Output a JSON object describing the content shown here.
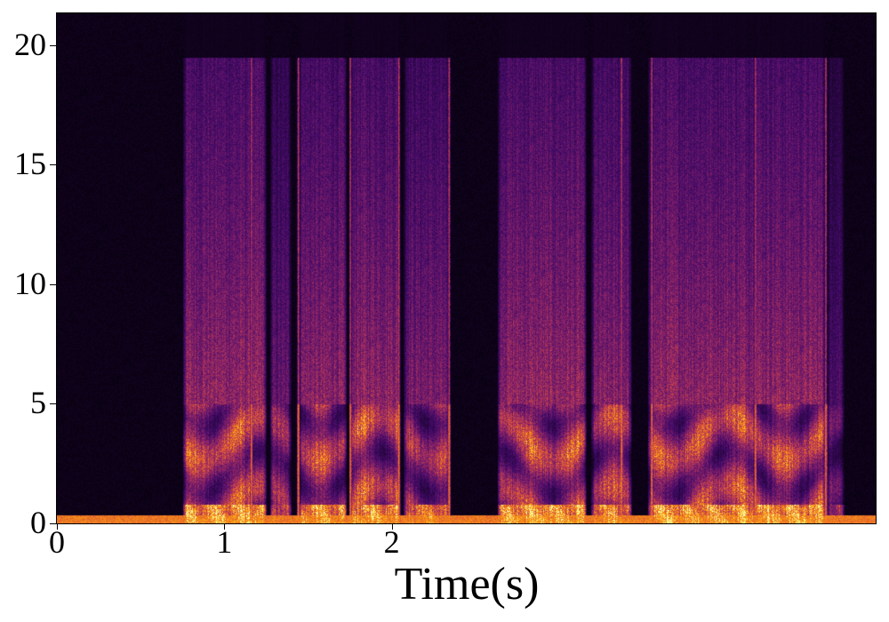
{
  "chart_data": {
    "type": "heatmap",
    "subtype": "spectrogram",
    "title": "",
    "xlabel": "Time(s)",
    "ylabel": "",
    "xlim": [
      0,
      4.89
    ],
    "ylim": [
      0,
      21.33
    ],
    "xticks": [
      "0",
      "1",
      "2"
    ],
    "xtick_values": [
      0,
      1,
      2
    ],
    "yticks": [
      "0",
      "5",
      "10",
      "15",
      "20"
    ],
    "ytick_values": [
      0,
      5,
      10,
      15,
      20
    ],
    "colormap": "inferno",
    "colormap_stops": [
      "#000004",
      "#420a68",
      "#932667",
      "#dd513a",
      "#fca50a",
      "#fcffa4"
    ],
    "grid": false,
    "active_segments_s": [
      [
        0.75,
        1.25,
        1.0
      ],
      [
        1.27,
        1.4,
        0.7
      ],
      [
        1.44,
        1.73,
        0.95
      ],
      [
        1.75,
        2.05,
        1.0
      ],
      [
        2.07,
        2.34,
        0.85
      ],
      [
        2.63,
        3.16,
        1.0
      ],
      [
        3.19,
        3.43,
        0.9
      ],
      [
        3.53,
        4.59,
        1.0
      ],
      [
        4.6,
        4.7,
        0.6
      ]
    ],
    "strong_vertical_lines_s": [
      1.16,
      1.44,
      1.75,
      2.04,
      2.34,
      3.37,
      3.55,
      4.17,
      4.59
    ]
  }
}
